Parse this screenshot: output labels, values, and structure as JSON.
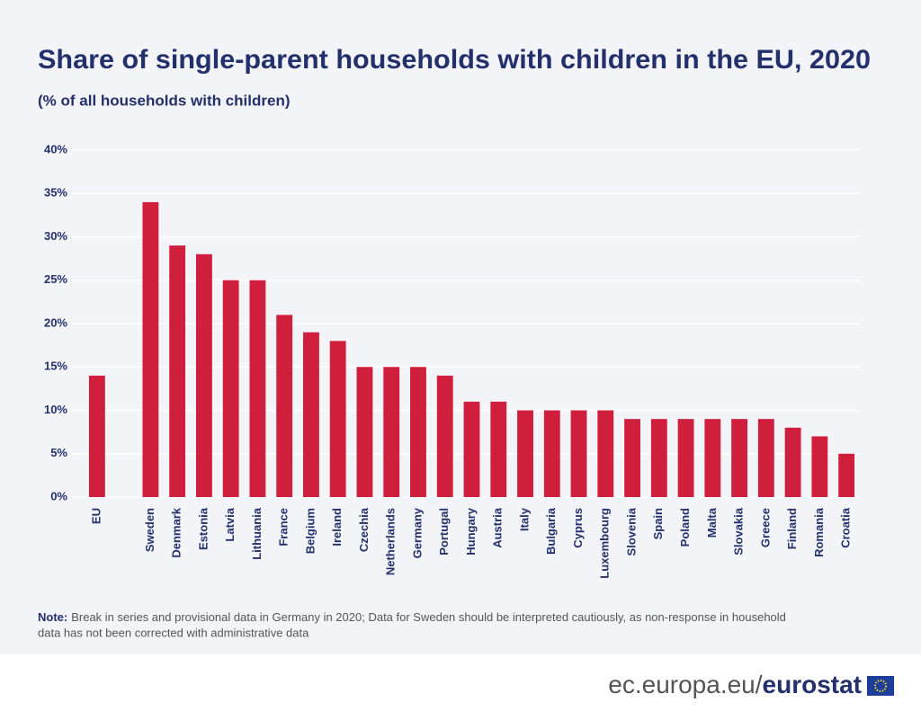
{
  "chart_data": {
    "type": "bar",
    "title": "Share of single-parent households with children in the EU, 2020",
    "subtitle": "(% of all households with children)",
    "categories": [
      "EU",
      null,
      "Sweden",
      "Denmark",
      "Estonia",
      "Latvia",
      "Lithuania",
      "France",
      "Belgium",
      "Ireland",
      "Czechia",
      "Netherlands",
      "Germany",
      "Portugal",
      "Hungary",
      "Austria",
      "Italy",
      "Bulgaria",
      "Cyprus",
      "Luxembourg",
      "Slovenia",
      "Spain",
      "Poland",
      "Malta",
      "Slovakia",
      "Greece",
      "Finland",
      "Romania",
      "Croatia"
    ],
    "values": [
      14,
      null,
      34,
      29,
      28,
      25,
      25,
      21,
      19,
      18,
      15,
      15,
      15,
      14,
      11,
      11,
      10,
      10,
      10,
      10,
      9,
      9,
      9,
      9,
      9,
      9,
      8,
      7,
      5
    ],
    "color": "#cf1f3c",
    "ylim": [
      0,
      40
    ],
    "yticks": [
      {
        "value": 0,
        "label": "0%"
      },
      {
        "value": 5,
        "label": "5%"
      },
      {
        "value": 10,
        "label": "10%"
      },
      {
        "value": 15,
        "label": "15%"
      },
      {
        "value": 20,
        "label": "20%"
      },
      {
        "value": 25,
        "label": "25%"
      },
      {
        "value": 30,
        "label": "30%"
      },
      {
        "value": 35,
        "label": "35%"
      },
      {
        "value": 40,
        "label": "40%"
      }
    ],
    "grid": true,
    "note": {
      "label": "Note:",
      "line1": "Break in series and provisional data in Germany in 2020; Data for Sweden should be interpreted cautiously, as non-response in household",
      "line2": "data has not been corrected with administrative data"
    }
  },
  "footer": {
    "domain": "ec.europa.eu/",
    "brand": "eurostat"
  }
}
